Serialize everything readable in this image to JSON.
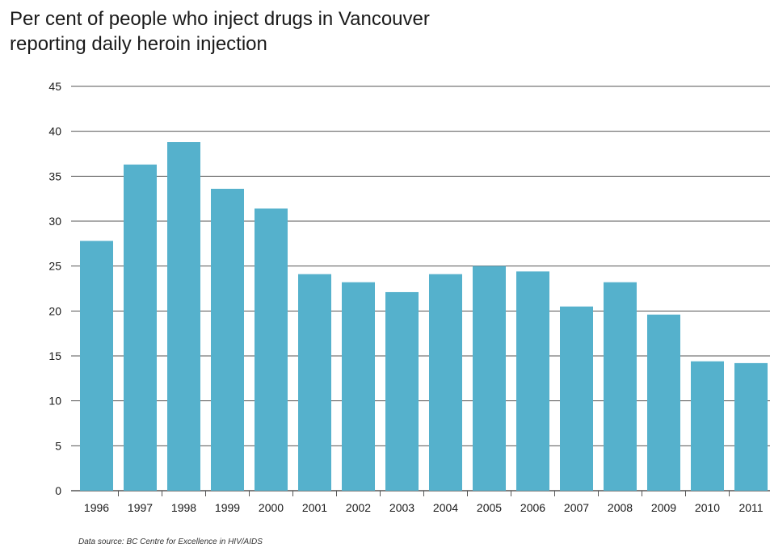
{
  "chart_data": {
    "type": "bar",
    "title_lines": [
      "Per cent of people who inject drugs in Vancouver",
      "reporting daily heroin injection"
    ],
    "categories": [
      "1996",
      "1997",
      "1998",
      "1999",
      "2000",
      "2001",
      "2002",
      "2003",
      "2004",
      "2005",
      "2006",
      "2007",
      "2008",
      "2009",
      "2010",
      "2011"
    ],
    "values": [
      27.8,
      36.3,
      38.8,
      33.6,
      31.4,
      24.1,
      23.2,
      22.1,
      24.1,
      25.0,
      24.4,
      20.5,
      23.2,
      19.6,
      14.4,
      14.2
    ],
    "ylim": [
      0,
      45
    ],
    "yticks": [
      0,
      5,
      10,
      15,
      20,
      25,
      30,
      35,
      40,
      45
    ],
    "xlabel": "",
    "ylabel": "",
    "grid": true,
    "bar_color": "#55b1cc",
    "grid_color": "#555555"
  },
  "source": "Data source: BC Centre for Excellence in HIV/AIDS"
}
